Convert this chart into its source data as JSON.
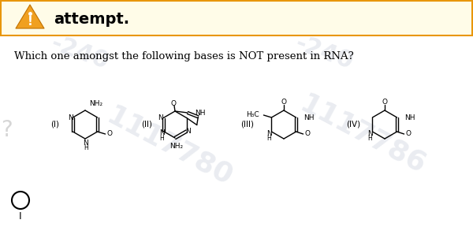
{
  "bg_top_color": "#fffce8",
  "bg_top_border": "#e8960a",
  "warning_icon_color": "#f0a020",
  "title_text": "attempt.",
  "question_text": "Which one amongst the following bases is NOT present in RNA?",
  "watermark_color": "#a0aac0",
  "question_color": "#000000",
  "title_color": "#000000",
  "font_size_title": 14,
  "font_size_question": 9.5,
  "structures": {
    "I_label": "(I)",
    "II_label": "(II)",
    "III_label": "(III)",
    "IV_label": "(IV)"
  }
}
